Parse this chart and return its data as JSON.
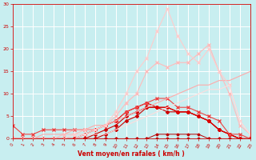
{
  "bg_color": "#c8eef0",
  "grid_color": "#ffffff",
  "xlabel": "Vent moyen/en rafales ( km/h )",
  "xlabel_color": "#cc0000",
  "tick_color": "#cc0000",
  "xlim": [
    0,
    23
  ],
  "ylim": [
    0,
    30
  ],
  "xticks": [
    0,
    1,
    2,
    3,
    4,
    5,
    6,
    7,
    8,
    9,
    10,
    11,
    12,
    13,
    14,
    15,
    16,
    17,
    18,
    19,
    20,
    21,
    22,
    23
  ],
  "yticks": [
    0,
    5,
    10,
    15,
    20,
    25,
    30
  ],
  "series": [
    {
      "x": [
        0,
        1,
        2,
        3,
        4,
        5,
        6,
        7,
        8,
        9,
        10,
        11,
        12,
        13,
        14,
        15,
        16,
        17,
        18,
        19,
        20,
        21,
        22,
        23
      ],
      "y": [
        0,
        0,
        0,
        0,
        0,
        0,
        0,
        0,
        0,
        0,
        0,
        0,
        0,
        0,
        0,
        0,
        0,
        0,
        0,
        0,
        0,
        0,
        0,
        0
      ],
      "color": "#aa0000",
      "lw": 0.7,
      "marker": "D",
      "ms": 1.5
    },
    {
      "x": [
        0,
        1,
        2,
        3,
        4,
        5,
        6,
        7,
        8,
        9,
        10,
        11,
        12,
        13,
        14,
        15,
        16,
        17,
        18,
        19,
        20,
        21,
        22,
        23
      ],
      "y": [
        0,
        0,
        0,
        0,
        0,
        0,
        0,
        0,
        0,
        0,
        0,
        0,
        0,
        0,
        1,
        1,
        1,
        1,
        1,
        0,
        0,
        0,
        0,
        0
      ],
      "color": "#bb0000",
      "lw": 0.7,
      "marker": "D",
      "ms": 1.5
    },
    {
      "x": [
        0,
        1,
        2,
        3,
        4,
        5,
        6,
        7,
        8,
        9,
        10,
        11,
        12,
        13,
        14,
        15,
        16,
        17,
        18,
        19,
        20,
        21,
        22,
        23
      ],
      "y": [
        0,
        0,
        0,
        0,
        0,
        0,
        0,
        0,
        0,
        1,
        2,
        4,
        5,
        7,
        7,
        6,
        6,
        6,
        5,
        4,
        2,
        1,
        0,
        0
      ],
      "color": "#cc0000",
      "lw": 0.8,
      "marker": "D",
      "ms": 2.0
    },
    {
      "x": [
        0,
        1,
        2,
        3,
        4,
        5,
        6,
        7,
        8,
        9,
        10,
        11,
        12,
        13,
        14,
        15,
        16,
        17,
        18,
        19,
        20,
        21,
        22,
        23
      ],
      "y": [
        0,
        0,
        0,
        0,
        0,
        0,
        0,
        0,
        1,
        2,
        3,
        5,
        6,
        7,
        7,
        7,
        6,
        6,
        5,
        4,
        2,
        1,
        0,
        0
      ],
      "color": "#cc0000",
      "lw": 0.8,
      "marker": "D",
      "ms": 2.0
    },
    {
      "x": [
        0,
        1,
        2,
        3,
        4,
        5,
        6,
        7,
        8,
        9,
        10,
        11,
        12,
        13,
        14,
        15,
        16,
        17,
        18,
        19,
        20,
        21,
        22,
        23
      ],
      "y": [
        0,
        0,
        0,
        0,
        0,
        0,
        0,
        1,
        2,
        3,
        4,
        6,
        7,
        8,
        7,
        7,
        6,
        6,
        5,
        4,
        2,
        1,
        0,
        0
      ],
      "color": "#dd0000",
      "lw": 0.8,
      "marker": "D",
      "ms": 2.0
    },
    {
      "x": [
        0,
        1,
        2,
        3,
        4,
        5,
        6,
        7,
        8,
        9,
        10,
        11,
        12,
        13,
        14,
        15,
        16,
        17,
        18,
        19,
        20,
        21,
        22,
        23
      ],
      "y": [
        3,
        1,
        1,
        2,
        2,
        2,
        2,
        2,
        2,
        3,
        4,
        6,
        7,
        8,
        9,
        9,
        7,
        7,
        6,
        5,
        4,
        1,
        1,
        0
      ],
      "color": "#ee4444",
      "lw": 0.8,
      "marker": "x",
      "ms": 2.5
    },
    {
      "x": [
        0,
        1,
        2,
        3,
        4,
        5,
        6,
        7,
        8,
        9,
        10,
        11,
        12,
        13,
        14,
        15,
        16,
        17,
        18,
        19,
        20,
        21,
        22,
        23
      ],
      "y": [
        0,
        0,
        0,
        1,
        1,
        1,
        2,
        2,
        3,
        3,
        4,
        5,
        6,
        7,
        8,
        9,
        10,
        11,
        12,
        12,
        13,
        13,
        14,
        15
      ],
      "color": "#ffaaaa",
      "lw": 0.8,
      "marker": null,
      "ms": 0
    },
    {
      "x": [
        0,
        1,
        2,
        3,
        4,
        5,
        6,
        7,
        8,
        9,
        10,
        11,
        12,
        13,
        14,
        15,
        16,
        17,
        18,
        19,
        20,
        21,
        22,
        23
      ],
      "y": [
        0,
        0,
        0,
        0,
        0,
        1,
        1,
        2,
        2,
        3,
        5,
        8,
        10,
        15,
        17,
        16,
        17,
        17,
        19,
        21,
        15,
        10,
        3,
        1
      ],
      "color": "#ffbbbb",
      "lw": 0.8,
      "marker": "x",
      "ms": 2.5
    },
    {
      "x": [
        0,
        1,
        2,
        3,
        4,
        5,
        6,
        7,
        8,
        9,
        10,
        11,
        12,
        13,
        14,
        15,
        16,
        17,
        18,
        19,
        20,
        21,
        22,
        23
      ],
      "y": [
        0,
        0,
        0,
        0,
        0,
        0,
        1,
        1,
        2,
        3,
        6,
        10,
        15,
        18,
        24,
        29,
        23,
        19,
        17,
        20,
        15,
        12,
        4,
        1
      ],
      "color": "#ffcccc",
      "lw": 0.8,
      "marker": "x",
      "ms": 2.5
    },
    {
      "x": [
        0,
        1,
        2,
        3,
        4,
        5,
        6,
        7,
        8,
        9,
        10,
        11,
        12,
        13,
        14,
        15,
        16,
        17,
        18,
        19,
        20,
        21,
        22,
        23
      ],
      "y": [
        0,
        0,
        0,
        0,
        0,
        0,
        0,
        1,
        1,
        1,
        2,
        3,
        4,
        5,
        6,
        7,
        8,
        9,
        10,
        11,
        11,
        12,
        4,
        1
      ],
      "color": "#ffdddd",
      "lw": 0.8,
      "marker": null,
      "ms": 0
    }
  ]
}
